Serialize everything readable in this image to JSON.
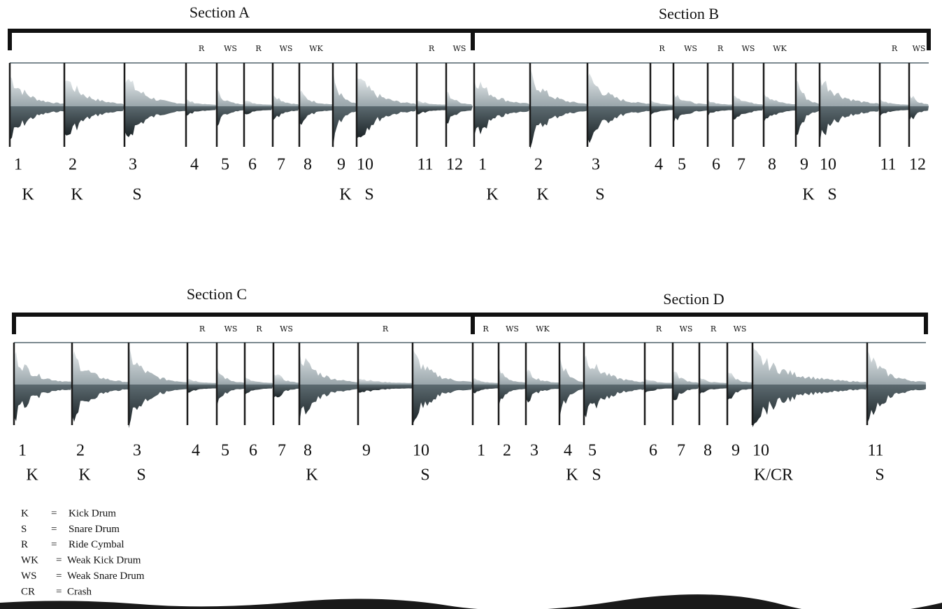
{
  "rows": [
    {
      "sections": [
        {
          "title": "Section A",
          "beats": [
            {
              "number": 1,
              "hit": "K"
            },
            {
              "number": 2,
              "hit": "K"
            },
            {
              "number": 3,
              "hit": "S"
            },
            {
              "number": 4,
              "top": "R"
            },
            {
              "number": 5,
              "top": "WS"
            },
            {
              "number": 6,
              "top": "R"
            },
            {
              "number": 7,
              "top": "WS"
            },
            {
              "number": 8,
              "top": "WK"
            },
            {
              "number": 9,
              "hit": "K"
            },
            {
              "number": 10,
              "hit": "S"
            },
            {
              "number": 11,
              "top": "R"
            },
            {
              "number": 12,
              "top": "WS"
            }
          ]
        },
        {
          "title": "Section B",
          "beats": [
            {
              "number": 1,
              "hit": "K"
            },
            {
              "number": 2,
              "hit": "K"
            },
            {
              "number": 3,
              "hit": "S"
            },
            {
              "number": 4,
              "top": "R"
            },
            {
              "number": 5,
              "top": "WS"
            },
            {
              "number": 6,
              "top": "R"
            },
            {
              "number": 7,
              "top": "WS"
            },
            {
              "number": 8,
              "top": "WK"
            },
            {
              "number": 9,
              "hit": "K"
            },
            {
              "number": 10,
              "hit": "S"
            },
            {
              "number": 11,
              "top": "R"
            },
            {
              "number": 12,
              "top": "WS"
            }
          ]
        }
      ]
    },
    {
      "sections": [
        {
          "title": "Section C",
          "beats": [
            {
              "number": 1,
              "hit": "K"
            },
            {
              "number": 2,
              "hit": "K"
            },
            {
              "number": 3,
              "hit": "S"
            },
            {
              "number": 4,
              "top": "R"
            },
            {
              "number": 5,
              "top": "WS"
            },
            {
              "number": 6,
              "top": "R"
            },
            {
              "number": 7,
              "top": "WS"
            },
            {
              "number": 8,
              "hit": "K"
            },
            {
              "number": 9,
              "top": "R"
            },
            {
              "number": 10,
              "hit": "S"
            }
          ]
        },
        {
          "title": "Section D",
          "beats": [
            {
              "number": 1,
              "top": "R"
            },
            {
              "number": 2,
              "top": "WS"
            },
            {
              "number": 3,
              "top": "WK"
            },
            {
              "number": 4,
              "hit": "K"
            },
            {
              "number": 5,
              "hit": "S"
            },
            {
              "number": 6,
              "top": "R"
            },
            {
              "number": 7,
              "top": "WS"
            },
            {
              "number": 8,
              "top": "R"
            },
            {
              "number": 9,
              "top": "WS"
            },
            {
              "number": 10,
              "hit": "K/CR"
            },
            {
              "number": 11,
              "hit": "S"
            }
          ]
        }
      ]
    }
  ],
  "legend": {
    "separator": "=",
    "items": [
      {
        "symbol": "K",
        "meaning": "Kick Drum"
      },
      {
        "symbol": "S",
        "meaning": "Snare Drum"
      },
      {
        "symbol": "R",
        "meaning": "Ride Cymbal"
      },
      {
        "symbol": "WK",
        "meaning": "Weak Kick Drum"
      },
      {
        "symbol": "WS",
        "meaning": "Weak Snare Drum"
      },
      {
        "symbol": "CR",
        "meaning": "Crash"
      }
    ]
  }
}
